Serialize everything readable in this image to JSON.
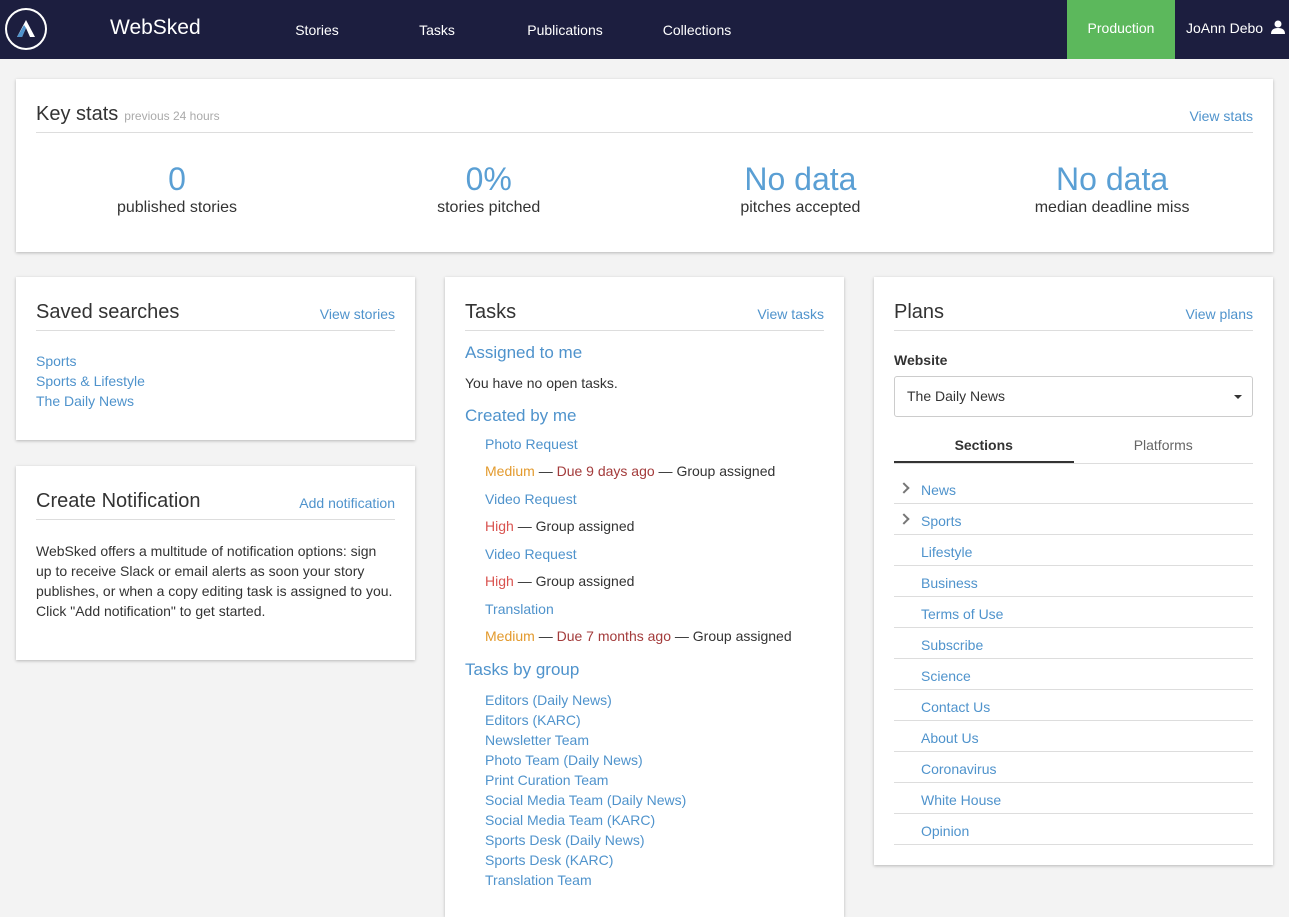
{
  "nav": {
    "brand": "WebSked",
    "items": [
      "Stories",
      "Tasks",
      "Publications",
      "Collections"
    ],
    "environment": "Production",
    "user": "JoAnn Debo"
  },
  "key_stats": {
    "title": "Key stats",
    "subtitle": "previous 24 hours",
    "link": "View stats",
    "stats": [
      {
        "value": "0",
        "label": "published stories"
      },
      {
        "value": "0%",
        "label": "stories pitched"
      },
      {
        "value": "No data",
        "label": "pitches accepted"
      },
      {
        "value": "No data",
        "label": "median deadline miss"
      }
    ]
  },
  "saved_searches": {
    "title": "Saved searches",
    "link": "View stories",
    "items": [
      "Sports",
      "Sports & Lifestyle",
      "The Daily News"
    ]
  },
  "notification": {
    "title": "Create Notification",
    "link": "Add notification",
    "text": "WebSked offers a multitude of notification options: sign up to receive Slack or email alerts as soon your story publishes, or when a copy editing task is assigned to you. Click \"Add notification\" to get started."
  },
  "tasks": {
    "title": "Tasks",
    "link": "View tasks",
    "separator": "—",
    "assigned_title": "Assigned to me",
    "assigned_empty": "You have no open tasks.",
    "created_title": "Created by me",
    "created": [
      {
        "name": "Photo Request",
        "priority": "Medium",
        "due": "Due 9 days ago",
        "assigned": "Group assigned"
      },
      {
        "name": "Video Request",
        "priority": "High",
        "assigned": "Group assigned"
      },
      {
        "name": "Video Request",
        "priority": "High",
        "assigned": "Group assigned"
      },
      {
        "name": "Translation",
        "priority": "Medium",
        "due": "Due 7 months ago",
        "assigned": "Group assigned"
      }
    ],
    "groups_title": "Tasks by group",
    "groups": [
      "Editors (Daily News)",
      "Editors (KARC)",
      "Newsletter Team",
      "Photo Team (Daily News)",
      "Print Curation Team",
      "Social Media Team (Daily News)",
      "Social Media Team (KARC)",
      "Sports Desk (Daily News)",
      "Sports Desk (KARC)",
      "Translation Team"
    ]
  },
  "plans": {
    "title": "Plans",
    "link": "View plans",
    "website_label": "Website",
    "website": "The Daily News",
    "tabs": [
      "Sections",
      "Platforms"
    ],
    "sections": [
      {
        "name": "News",
        "expandable": true
      },
      {
        "name": "Sports",
        "expandable": true
      },
      {
        "name": "Lifestyle"
      },
      {
        "name": "Business"
      },
      {
        "name": "Terms of Use"
      },
      {
        "name": "Subscribe"
      },
      {
        "name": "Science"
      },
      {
        "name": "Contact Us"
      },
      {
        "name": "About Us"
      },
      {
        "name": "Coronavirus"
      },
      {
        "name": "White House"
      },
      {
        "name": "Opinion"
      }
    ]
  }
}
